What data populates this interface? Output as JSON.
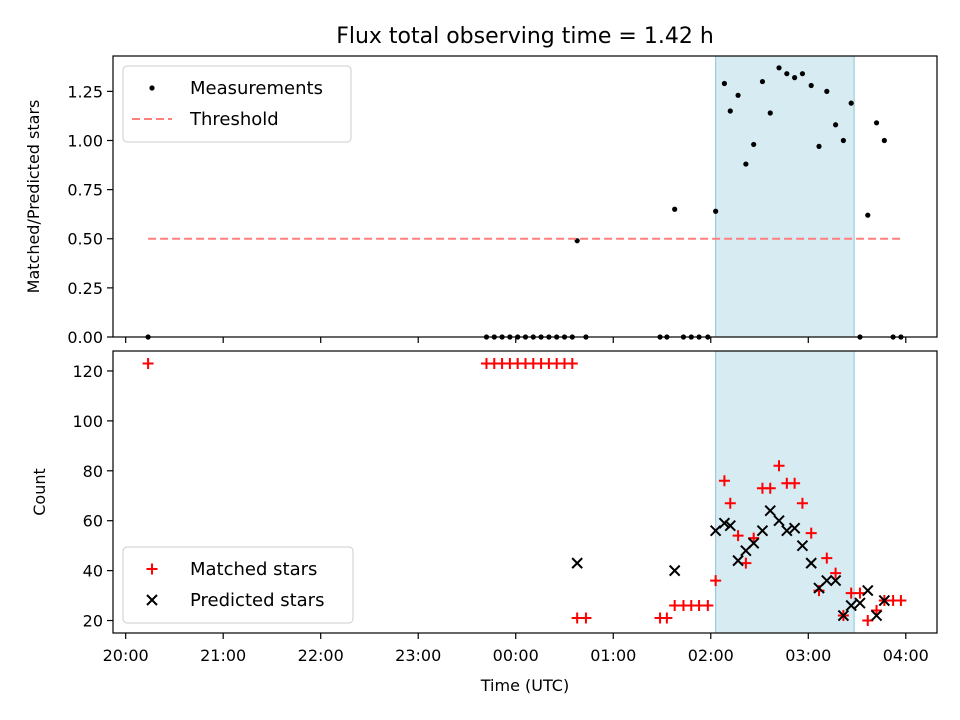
{
  "chart_data": [
    {
      "type": "scatter",
      "title": "Flux total observing time = 1.42 h",
      "xlabel": "",
      "ylabel": "Matched/Predicted stars",
      "xlim": [
        19.87,
        28.32
      ],
      "ylim": [
        0,
        1.43
      ],
      "yticks": [
        0.0,
        0.25,
        0.5,
        0.75,
        1.0,
        1.25
      ],
      "yticklabels": [
        "0.00",
        "0.25",
        "0.50",
        "0.75",
        "1.00",
        "1.25"
      ],
      "shaded_span": [
        26.05,
        27.47
      ],
      "legend": {
        "placement": "upper-left",
        "entries": [
          "Measurements",
          "Threshold"
        ]
      },
      "series": [
        {
          "name": "Measurements",
          "marker": "dot",
          "color": "#000000",
          "x": [
            20.23,
            23.7,
            23.78,
            23.86,
            23.94,
            24.02,
            24.1,
            24.18,
            24.26,
            24.34,
            24.42,
            24.5,
            24.58,
            24.63,
            24.72,
            25.48,
            25.55,
            25.63,
            25.72,
            25.8,
            25.88,
            25.97,
            26.05,
            26.14,
            26.2,
            26.28,
            26.36,
            26.44,
            26.53,
            26.61,
            26.7,
            26.78,
            26.86,
            26.94,
            27.03,
            27.11,
            27.19,
            27.28,
            27.36,
            27.44,
            27.53,
            27.61,
            27.7,
            27.78,
            27.87,
            27.95
          ],
          "y": [
            0.0,
            0.0,
            0.0,
            0.0,
            0.0,
            0.0,
            0.0,
            0.0,
            0.0,
            0.0,
            0.0,
            0.0,
            0.0,
            0.49,
            0.0,
            0.0,
            0.0,
            0.65,
            0.0,
            0.0,
            0.0,
            0.0,
            0.64,
            1.29,
            1.15,
            1.23,
            0.88,
            0.98,
            1.3,
            1.14,
            1.37,
            1.34,
            1.32,
            1.34,
            1.28,
            0.97,
            1.25,
            1.08,
            1.0,
            1.19,
            0.0,
            0.62,
            1.09,
            1.0,
            0.0,
            0.0
          ]
        },
        {
          "name": "Threshold",
          "marker": "dashed-line",
          "color": "#ff7f7f",
          "x": [
            20.23,
            27.95
          ],
          "y": [
            0.5,
            0.5
          ]
        }
      ]
    },
    {
      "type": "scatter",
      "title": "",
      "xlabel": "Time (UTC)",
      "ylabel": "Count",
      "xlim": [
        19.87,
        28.32
      ],
      "ylim": [
        15,
        128
      ],
      "yticks": [
        20,
        40,
        60,
        80,
        100,
        120
      ],
      "yticklabels": [
        "20",
        "40",
        "60",
        "80",
        "100",
        "120"
      ],
      "xticks": [
        20,
        21,
        22,
        23,
        24,
        25,
        26,
        27,
        28
      ],
      "xticklabels": [
        "20:00",
        "21:00",
        "22:00",
        "23:00",
        "00:00",
        "01:00",
        "02:00",
        "03:00",
        "04:00"
      ],
      "shaded_span": [
        26.05,
        27.47
      ],
      "legend": {
        "placement": "lower-left",
        "entries": [
          "Matched stars",
          "Predicted stars"
        ]
      },
      "series": [
        {
          "name": "Matched stars",
          "marker": "plus",
          "color": "#ff0000",
          "x": [
            20.23,
            23.7,
            23.78,
            23.86,
            23.94,
            24.02,
            24.1,
            24.18,
            24.26,
            24.34,
            24.42,
            24.5,
            24.58,
            24.63,
            24.72,
            25.48,
            25.55,
            25.63,
            25.72,
            25.8,
            25.88,
            25.97,
            26.05,
            26.14,
            26.2,
            26.28,
            26.36,
            26.44,
            26.53,
            26.61,
            26.7,
            26.78,
            26.86,
            26.94,
            27.03,
            27.11,
            27.19,
            27.28,
            27.36,
            27.44,
            27.53,
            27.61,
            27.7,
            27.78,
            27.87,
            27.95
          ],
          "y": [
            123,
            123,
            123,
            123,
            123,
            123,
            123,
            123,
            123,
            123,
            123,
            123,
            123,
            21,
            21,
            21,
            21,
            26,
            26,
            26,
            26,
            26,
            36,
            76,
            67,
            54,
            43,
            53,
            73,
            73,
            82,
            75,
            75,
            67,
            55,
            32,
            45,
            39,
            22,
            31,
            31,
            20,
            24,
            28,
            28,
            28
          ]
        },
        {
          "name": "Predicted stars",
          "marker": "x",
          "color": "#000000",
          "x": [
            24.63,
            25.63,
            26.05,
            26.14,
            26.2,
            26.28,
            26.36,
            26.44,
            26.53,
            26.61,
            26.7,
            26.78,
            26.86,
            26.94,
            27.03,
            27.11,
            27.19,
            27.28,
            27.36,
            27.44,
            27.53,
            27.61,
            27.7,
            27.78
          ],
          "y": [
            43,
            40,
            56,
            59,
            58,
            44,
            48,
            51,
            56,
            64,
            60,
            56,
            57,
            50,
            43,
            33,
            36,
            36,
            22,
            26,
            27,
            32,
            22,
            28
          ]
        }
      ]
    }
  ]
}
